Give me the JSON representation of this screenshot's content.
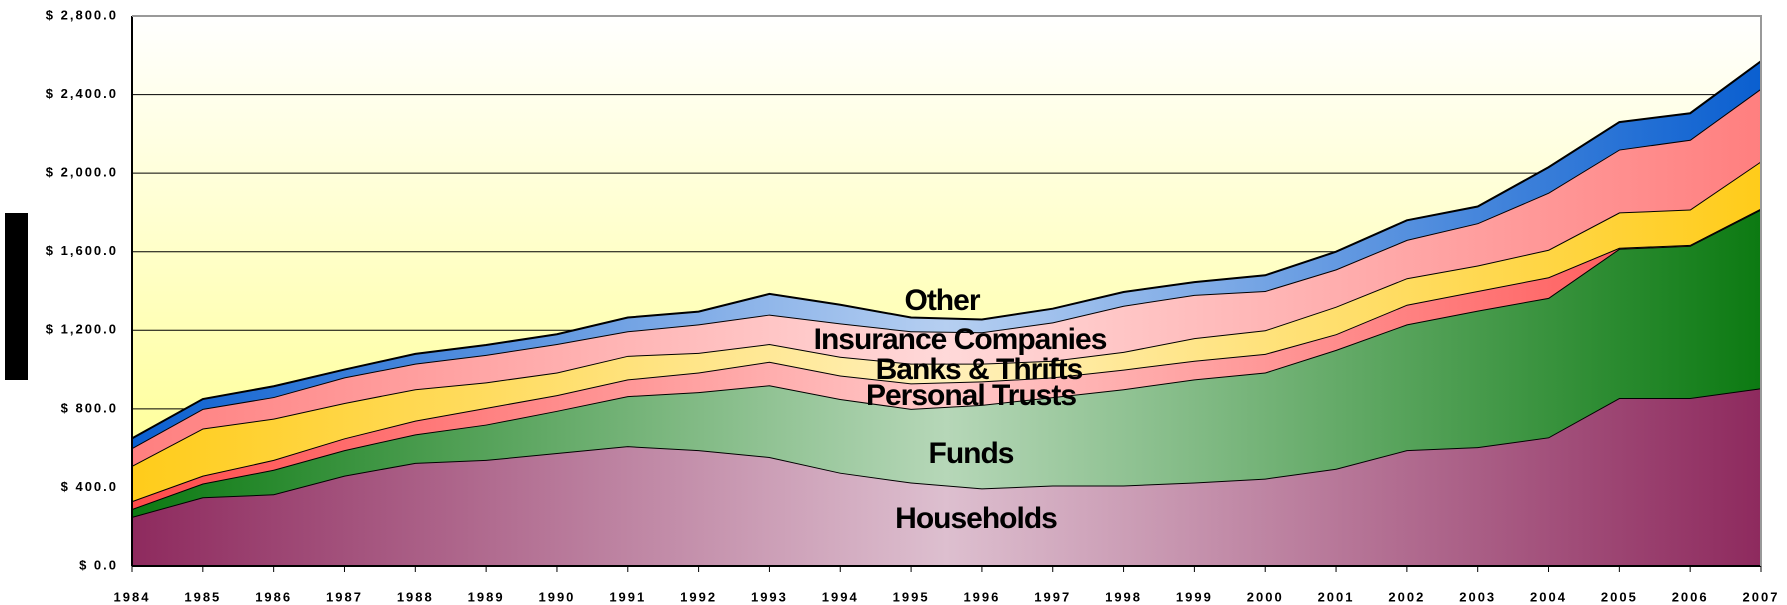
{
  "chart_data": {
    "type": "stacked-area",
    "categories": [
      "1984",
      "1985",
      "1986",
      "1987",
      "1988",
      "1989",
      "1990",
      "1991",
      "1992",
      "1993",
      "1994",
      "1995",
      "1996",
      "1997",
      "1998",
      "1999",
      "2000",
      "2001",
      "2002",
      "2003",
      "2004",
      "2005",
      "2006",
      "2007"
    ],
    "series": [
      {
        "name": "Households",
        "color": "#8e2a5e",
        "values": [
          250,
          350,
          365,
          460,
          525,
          540,
          575,
          610,
          590,
          555,
          475,
          425,
          395,
          410,
          410,
          425,
          445,
          495,
          590,
          605,
          655,
          855,
          855,
          905
        ]
      },
      {
        "name": "Funds",
        "color": "#0c7a12",
        "values": [
          40,
          70,
          125,
          130,
          145,
          180,
          215,
          255,
          295,
          365,
          375,
          375,
          425,
          450,
          490,
          525,
          540,
          605,
          640,
          695,
          710,
          760,
          775,
          910
        ]
      },
      {
        "name": "Personal Trusts",
        "color": "#ff4a4a",
        "values": [
          40,
          40,
          50,
          60,
          70,
          85,
          80,
          85,
          100,
          120,
          120,
          130,
          120,
          100,
          100,
          95,
          95,
          80,
          100,
          100,
          105,
          5,
          5,
          5
        ]
      },
      {
        "name": "Banks & Thrifts",
        "color": "#ffcc1a",
        "values": [
          180,
          240,
          210,
          180,
          160,
          130,
          115,
          120,
          100,
          90,
          95,
          100,
          90,
          85,
          90,
          115,
          120,
          140,
          135,
          130,
          140,
          180,
          180,
          240
        ]
      },
      {
        "name": "Insurance Companies",
        "color": "#ff7f7f",
        "values": [
          90,
          100,
          110,
          130,
          130,
          140,
          145,
          125,
          145,
          150,
          170,
          165,
          160,
          195,
          235,
          220,
          200,
          190,
          195,
          215,
          290,
          320,
          355,
          370
        ]
      },
      {
        "name": "Other",
        "color": "#0a5fd0",
        "values": [
          50,
          50,
          55,
          40,
          50,
          50,
          50,
          70,
          65,
          105,
          95,
          70,
          65,
          70,
          70,
          65,
          80,
          90,
          100,
          85,
          130,
          140,
          135,
          140
        ]
      }
    ],
    "ylim": [
      0,
      2800
    ],
    "yticks": [
      {
        "value": 0,
        "label": "$ 0.0"
      },
      {
        "value": 400,
        "label": "$ 400.0"
      },
      {
        "value": 800,
        "label": "$ 800.0"
      },
      {
        "value": 1200,
        "label": "$ 1,200.0"
      },
      {
        "value": 1600,
        "label": "$ 1,600.0"
      },
      {
        "value": 2000,
        "label": "$ 2,000.0"
      },
      {
        "value": 2400,
        "label": "$ 2,400.0"
      },
      {
        "value": 2800,
        "label": "$ 2,800.0"
      }
    ],
    "grid": true
  }
}
